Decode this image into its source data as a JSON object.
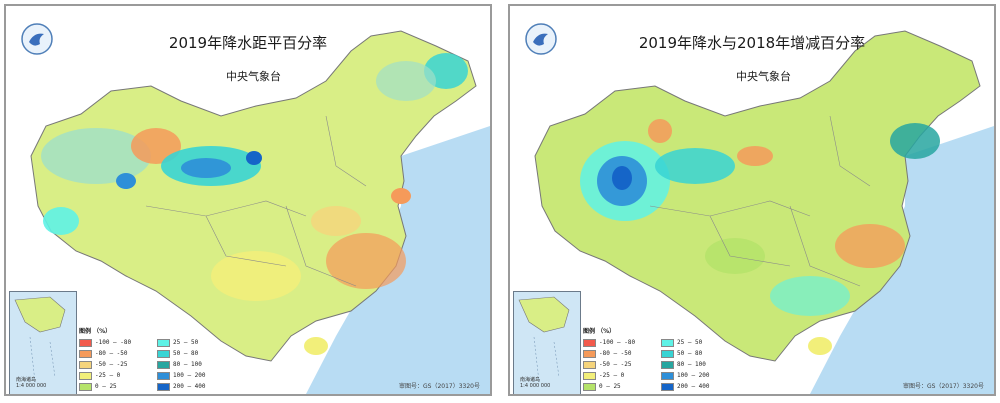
{
  "panels": [
    {
      "title": "2019年降水距平百分率",
      "subtitle": "中央气象台",
      "legend_title": "图例 （%）",
      "approval": "审图号：GS（2017）3320号"
    },
    {
      "title": "2019年降水与2018年增减百分率",
      "subtitle": "中央气象台",
      "legend_title": "图例 （%）",
      "approval": "审图号：GS（2017）3320号"
    }
  ],
  "inset": {
    "label_line1": "南海诸岛",
    "label_line2": "1:4 000 000"
  },
  "legend": [
    {
      "label": "-100 — -80",
      "color": "#f25a4c"
    },
    {
      "label": "-80 — -50",
      "color": "#f59a5a"
    },
    {
      "label": "-50 — -25",
      "color": "#f5d47c"
    },
    {
      "label": "-25 — 0",
      "color": "#f2ef7a"
    },
    {
      "label": "0 — 25",
      "color": "#b5e36a"
    },
    {
      "label": "25 — 50",
      "color": "#5ef2e6"
    },
    {
      "label": "50 — 80",
      "color": "#38d4d4"
    },
    {
      "label": "80 — 100",
      "color": "#27a6a0"
    },
    {
      "label": "100 — 200",
      "color": "#2e8fd8"
    },
    {
      "label": "200 — 400",
      "color": "#1565c8"
    }
  ],
  "colors": {
    "sea": "#a9d3ef",
    "border": "#6d6d6d",
    "frame": "#9a9a9a"
  }
}
